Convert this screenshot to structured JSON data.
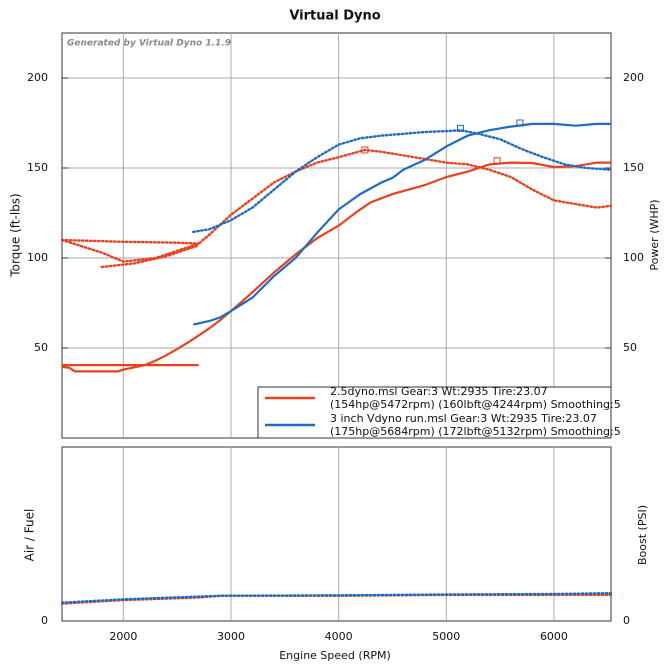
{
  "chart_data": {
    "type": "line",
    "title": "Virtual Dyno",
    "watermark": "Generated by Virtual Dyno 1.1.9",
    "xlabel": "Engine Speed (RPM)",
    "ylabel": "Torque (ft-lbs)",
    "y2label": "Power (WHP)",
    "xlim": [
      1430,
      6530
    ],
    "xticks": [
      2000,
      3000,
      4000,
      5000,
      6000
    ],
    "ylim": [
      0,
      225
    ],
    "yticks": [
      50,
      100,
      150,
      200
    ],
    "y2lim": [
      0,
      225
    ],
    "y2ticks": [
      50,
      100,
      150,
      200
    ],
    "grid": true,
    "runs": [
      {
        "legend": [
          "2.5dyno.msl Gear:3 Wt:2935 Tire:23.07",
          "(154hp@5472rpm) (160lbft@4244rpm) Smoothing:5"
        ],
        "color": "#e8411f",
        "power": {
          "x": [
            1430,
            2700,
            null,
            1430,
            1500,
            1550,
            1950,
            2000,
            2200,
            2300,
            2400,
            2500,
            2600,
            2700,
            2800,
            2900,
            3000,
            3200,
            3400,
            3600,
            3800,
            4000,
            4200,
            4300,
            4500,
            4800,
            5000,
            5200,
            5400,
            5600,
            5800,
            6000,
            6200,
            6400,
            6530
          ],
          "values": [
            40.5,
            40.5,
            null,
            39.5,
            39,
            37,
            37,
            38,
            40.5,
            43,
            46,
            49.4,
            53,
            57,
            61,
            65.5,
            70.5,
            81,
            92,
            102,
            111,
            118,
            127,
            131,
            135.5,
            140.5,
            145,
            148,
            152,
            153,
            152.8,
            150.5,
            151,
            153,
            153
          ]
        },
        "torque": {
          "x": [
            1430,
            2000,
            2500,
            2700,
            null,
            1800,
            2100,
            2400,
            2700,
            null,
            1430,
            1800,
            2000,
            2300,
            2700,
            2800,
            3000,
            3200,
            3400,
            3600,
            3800,
            4000,
            4244,
            4400,
            4600,
            4800,
            5000,
            5200,
            5400,
            5600,
            5800,
            6000,
            6200,
            6400,
            6530
          ],
          "values": [
            110,
            109,
            108.5,
            108,
            null,
            95,
            97,
            101,
            107,
            null,
            110,
            103,
            98,
            100,
            108,
            113,
            124,
            133,
            142,
            148,
            153,
            156,
            160,
            159,
            157,
            155,
            153,
            152,
            149,
            145,
            138,
            132,
            130,
            128,
            129
          ]
        },
        "peaks": [
          [
            4244,
            160
          ],
          [
            5472,
            154
          ]
        ]
      },
      {
        "legend": [
          "3 inch Vdyno run.msl Gear:3 Wt:2935 Tire:23.07",
          "(175hp@5684rpm) (172lbft@5132rpm) Smoothing:5"
        ],
        "color": "#1f6bc4",
        "power": {
          "x": [
            2650,
            2800,
            2900,
            3000,
            3200,
            3400,
            3600,
            3800,
            4000,
            4200,
            4400,
            4500,
            4600,
            4800,
            5000,
            5200,
            5400,
            5600,
            5800,
            6000,
            6200,
            6400,
            6530
          ],
          "values": [
            63,
            65,
            67,
            70.5,
            78,
            90,
            100,
            114,
            127,
            135.5,
            142,
            144.5,
            149,
            154.5,
            162,
            168,
            171,
            173,
            174.5,
            174.5,
            173.5,
            174.5,
            174.5
          ]
        },
        "torque": {
          "x": [
            2650,
            2800,
            3000,
            3200,
            3400,
            3600,
            3800,
            4000,
            4200,
            4400,
            4600,
            4800,
            5000,
            5132,
            5300,
            5500,
            5700,
            5900,
            6100,
            6300,
            6530
          ],
          "values": [
            114.5,
            116,
            121,
            128,
            138,
            148,
            156,
            163,
            166.5,
            168,
            169,
            170,
            170.5,
            171,
            169,
            166,
            160.5,
            156,
            152,
            150,
            149
          ]
        },
        "peaks": [
          [
            5132,
            172
          ],
          [
            5684,
            175
          ]
        ]
      }
    ],
    "lower": {
      "ylabel": "Air / Fuel",
      "y2label": "Boost (PSI)",
      "ylim": [
        0,
        20
      ],
      "yticks": [
        0
      ],
      "y2ticks": [
        0
      ],
      "series": [
        {
          "color": "#e8411f",
          "x": [
            1430,
            2000,
            2700,
            2900,
            4000,
            5000,
            6000,
            6530
          ],
          "values": [
            2.0,
            2.4,
            2.7,
            2.9,
            2.9,
            3.0,
            3.0,
            3.0
          ]
        },
        {
          "color": "#1f6bc4",
          "x": [
            1430,
            2000,
            2700,
            2900,
            4000,
            5000,
            6000,
            6530
          ],
          "values": [
            2.1,
            2.5,
            2.8,
            2.9,
            2.95,
            3.05,
            3.1,
            3.2
          ]
        }
      ]
    }
  }
}
